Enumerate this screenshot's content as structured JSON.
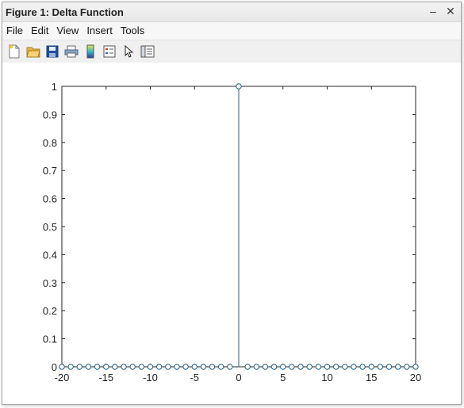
{
  "window": {
    "title": "Figure 1: Delta Function",
    "minimize_glyph": "–",
    "close_glyph": "✕"
  },
  "menu": [
    "File",
    "Edit",
    "View",
    "Insert",
    "Tools"
  ],
  "toolbar": {
    "icons": [
      "new-file-icon",
      "open-folder-icon",
      "save-icon",
      "print-icon",
      "colorbar-icon",
      "legend-icon",
      "pointer-icon",
      "property-editor-icon"
    ]
  },
  "colors": {
    "stem": "#1f5f8b",
    "axis": "#262626"
  },
  "chart_data": {
    "type": "stem",
    "title": "",
    "xlabel": "",
    "ylabel": "",
    "xlim": [
      -20,
      20
    ],
    "ylim": [
      0,
      1
    ],
    "xticks": [
      -20,
      -15,
      -10,
      -5,
      0,
      5,
      10,
      15,
      20
    ],
    "xtick_labels": [
      "-20",
      "-15",
      "-10",
      "-5",
      "0",
      "5",
      "10",
      "15",
      "20"
    ],
    "yticks": [
      0,
      0.1,
      0.2,
      0.3,
      0.4,
      0.5,
      0.6,
      0.7,
      0.8,
      0.9,
      1
    ],
    "ytick_labels": [
      "0",
      "0.1",
      "0.2",
      "0.3",
      "0.4",
      "0.5",
      "0.6",
      "0.7",
      "0.8",
      "0.9",
      "1"
    ],
    "marker": "circle-open",
    "grid": false,
    "x": [
      -20,
      -19,
      -18,
      -17,
      -16,
      -15,
      -14,
      -13,
      -12,
      -11,
      -10,
      -9,
      -8,
      -7,
      -6,
      -5,
      -4,
      -3,
      -2,
      -1,
      0,
      1,
      2,
      3,
      4,
      5,
      6,
      7,
      8,
      9,
      10,
      11,
      12,
      13,
      14,
      15,
      16,
      17,
      18,
      19,
      20
    ],
    "y": [
      0,
      0,
      0,
      0,
      0,
      0,
      0,
      0,
      0,
      0,
      0,
      0,
      0,
      0,
      0,
      0,
      0,
      0,
      0,
      0,
      1,
      0,
      0,
      0,
      0,
      0,
      0,
      0,
      0,
      0,
      0,
      0,
      0,
      0,
      0,
      0,
      0,
      0,
      0,
      0,
      0
    ]
  }
}
